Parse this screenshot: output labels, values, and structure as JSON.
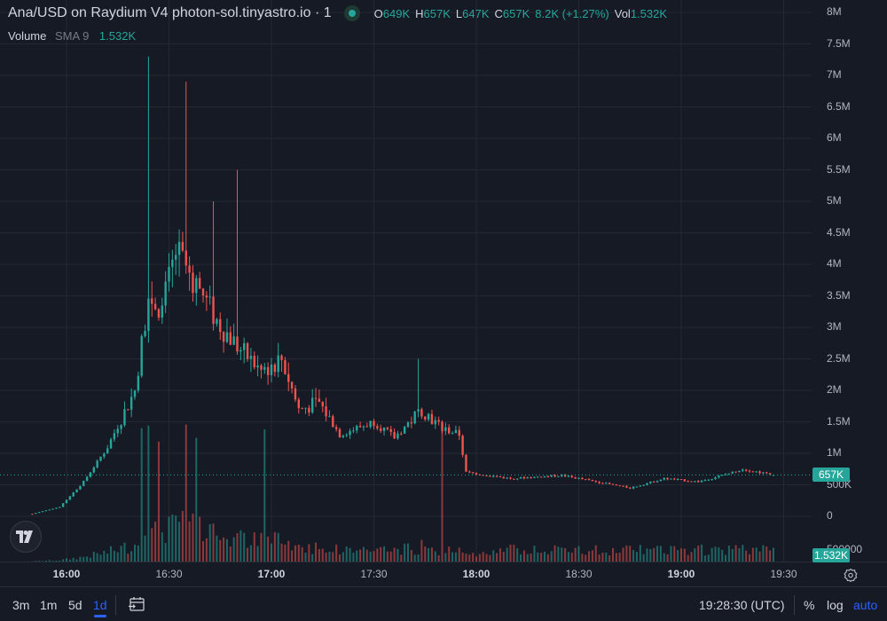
{
  "legend": {
    "title": "Ana/USD on Raydium V4 photon-sol.tinyastro.io · 1",
    "o_key": "O",
    "o_val": "649K",
    "h_key": "H",
    "h_val": "657K",
    "l_key": "L",
    "l_val": "647K",
    "c_key": "C",
    "c_val": "657K",
    "change": "8.2K (+1.27%)",
    "vol_key": "Vol",
    "vol_val": "1.532K"
  },
  "volume_legend": {
    "name": "Volume",
    "sma": "SMA 9",
    "value": "1.532K"
  },
  "price_axis": {
    "labels": [
      "8M",
      "7.5M",
      "7M",
      "6.5M",
      "6M",
      "5.5M",
      "5M",
      "4.5M",
      "4M",
      "3.5M",
      "3M",
      "2.5M",
      "2M",
      "1.5M",
      "1M",
      "500K",
      "0"
    ],
    "last_price": "657K",
    "volume_axis_label": "500000",
    "volume_tag": "1.532K"
  },
  "time_axis": {
    "labels": [
      {
        "text": "16:00",
        "bold": true
      },
      {
        "text": "16:30",
        "bold": false
      },
      {
        "text": "17:00",
        "bold": true
      },
      {
        "text": "17:30",
        "bold": false
      },
      {
        "text": "18:00",
        "bold": true
      },
      {
        "text": "18:30",
        "bold": false
      },
      {
        "text": "19:00",
        "bold": true
      },
      {
        "text": "19:30",
        "bold": false
      }
    ]
  },
  "bottom_bar": {
    "ranges": [
      "3m",
      "1m",
      "5d",
      "1d"
    ],
    "active_range": "1d",
    "clock": "19:28:30 (UTC)",
    "percent": "%",
    "log": "log",
    "auto": "auto"
  },
  "colors": {
    "up": "#26a69a",
    "down": "#ef5350",
    "background": "#161a25",
    "grid": "#242832",
    "accent": "#2962ff"
  },
  "icons": {
    "logo": "tradingview-logo-icon",
    "goto": "go-to-date-icon",
    "settings": "settings-gear-icon",
    "status": "market-status-dot-icon"
  },
  "chart_data": {
    "type": "candlestick",
    "interval": "1m",
    "y_unit": "USD",
    "ylim": [
      0,
      8000000
    ],
    "x_range": [
      "15:50",
      "19:30"
    ],
    "anchors": [
      [
        "15:50",
        40000
      ],
      [
        "15:58",
        150000
      ],
      [
        "16:05",
        550000
      ],
      [
        "16:12",
        1100000
      ],
      [
        "16:20",
        2000000
      ],
      [
        "16:24",
        3500000
      ],
      [
        "16:28",
        3300000
      ],
      [
        "16:32",
        4200000
      ],
      [
        "16:38",
        3700000
      ],
      [
        "16:44",
        3100000
      ],
      [
        "16:50",
        2700000
      ],
      [
        "16:57",
        2300000
      ],
      [
        "17:03",
        2500000
      ],
      [
        "17:08",
        1700000
      ],
      [
        "17:14",
        1800000
      ],
      [
        "17:20",
        1300000
      ],
      [
        "17:30",
        1500000
      ],
      [
        "17:36",
        1250000
      ],
      [
        "17:44",
        1700000
      ],
      [
        "17:50",
        1400000
      ],
      [
        "17:55",
        1300000
      ],
      [
        "17:57",
        700000
      ],
      [
        "18:10",
        600000
      ],
      [
        "18:25",
        650000
      ],
      [
        "18:40",
        500000
      ],
      [
        "18:45",
        450000
      ],
      [
        "18:55",
        600000
      ],
      [
        "19:05",
        550000
      ],
      [
        "19:12",
        650000
      ],
      [
        "19:18",
        750000
      ],
      [
        "19:27",
        657000
      ]
    ],
    "spikes": [
      [
        "16:24",
        7300000
      ],
      [
        "16:35",
        6900000
      ],
      [
        "16:43",
        5000000
      ],
      [
        "16:50",
        5500000
      ],
      [
        "17:43",
        2500000
      ]
    ],
    "last_candle": {
      "o": 649000,
      "h": 657000,
      "l": 647000,
      "c": 657000,
      "volume": 1532
    },
    "volume": {
      "peak_times": [
        "16:22",
        "16:24",
        "16:27",
        "16:35",
        "16:38",
        "16:58",
        "17:50"
      ],
      "ylim": [
        0,
        500000
      ]
    }
  }
}
